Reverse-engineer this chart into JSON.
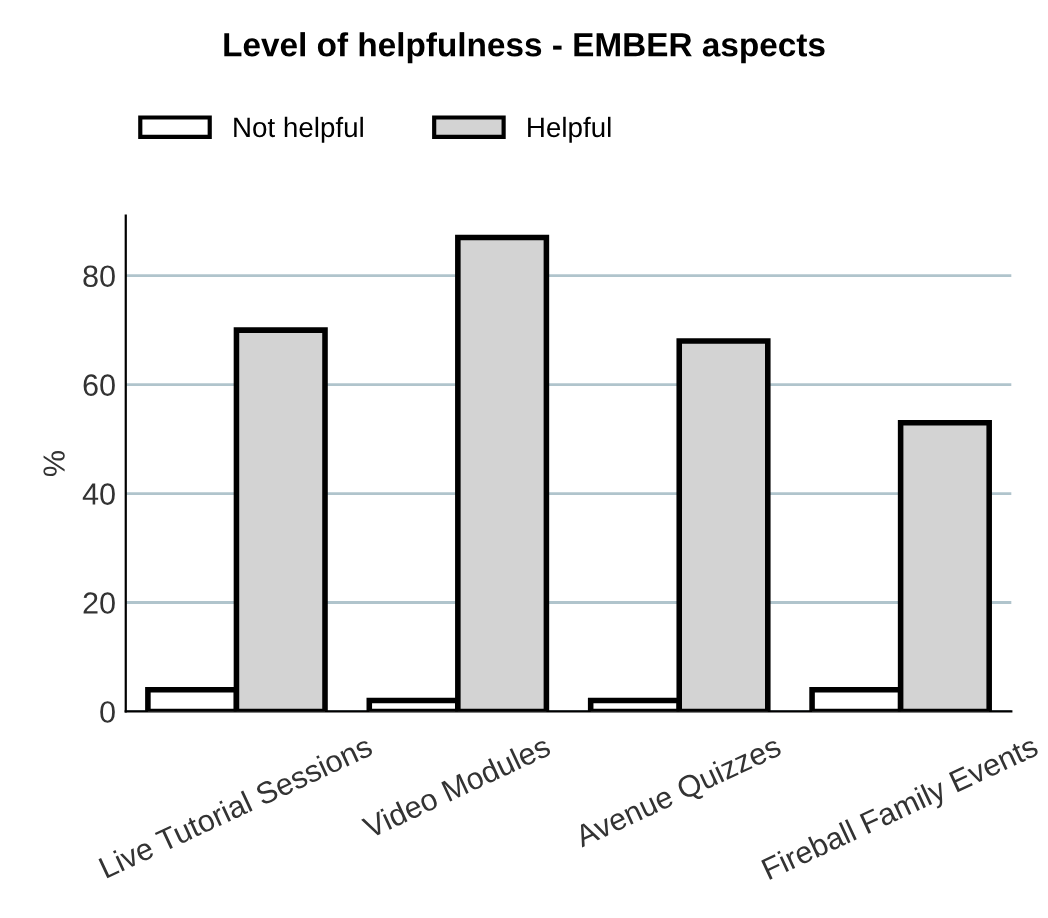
{
  "chart_data": {
    "type": "bar",
    "title": "Level of helpfulness - EMBER aspects",
    "ylabel": "%",
    "categories": [
      "Live Tutorial Sessions",
      "Video Modules",
      "Avenue Quizzes",
      "Fireball Family Events"
    ],
    "series": [
      {
        "name": "Not helpful",
        "color": "#ffffff",
        "values": [
          4,
          2,
          2,
          4
        ]
      },
      {
        "name": "Helpful",
        "color": "#d3d3d3",
        "values": [
          70,
          87,
          68,
          53
        ]
      }
    ],
    "ylim": [
      0,
      91
    ],
    "yticks": [
      0,
      20,
      40,
      60,
      80
    ],
    "grid": "y",
    "legend": "top left"
  }
}
